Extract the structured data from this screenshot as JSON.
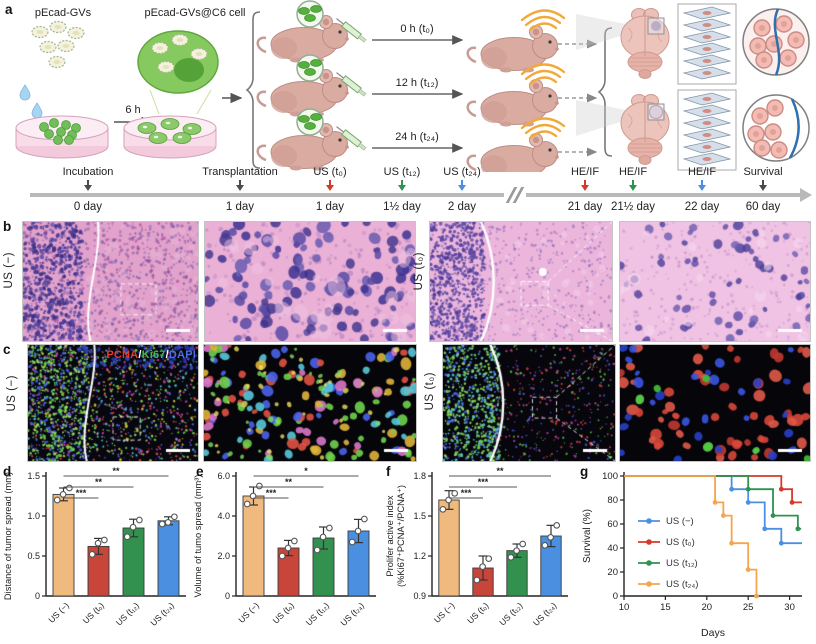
{
  "figure": {
    "panel_letters": [
      "a",
      "b",
      "c",
      "d",
      "e",
      "f",
      "g"
    ]
  },
  "schematic": {
    "gv_label": "pEcad-GVs",
    "cell_label": "pEcad-GVs@C6 cell",
    "incubation_time": "6 h",
    "injection_arrows": [
      "0 h (t₀)",
      "12 h (t₁₂)",
      "24 h (t₂₄)"
    ],
    "timeline": [
      {
        "label": "Incubation",
        "day": "0 day",
        "color": "#4a4a4a",
        "x": 88
      },
      {
        "label": "Transplantation",
        "day": "1 day",
        "color": "#4a4a4a",
        "x": 240
      },
      {
        "label": "US (t₀)",
        "day": "1 day",
        "color": "#d43a2a",
        "x": 330
      },
      {
        "label": "US (t₁₂)",
        "day": "1½ day",
        "color": "#2f9152",
        "x": 402
      },
      {
        "label": "US (t₂₄)",
        "day": "2 day",
        "color": "#4a90e2",
        "x": 462
      },
      {
        "label": "HE/IF",
        "day": "21 day",
        "color": "#d43a2a",
        "x": 585
      },
      {
        "label": "HE/IF",
        "day": "21½ day",
        "color": "#2f9152",
        "x": 633
      },
      {
        "label": "HE/IF",
        "day": "22 day",
        "color": "#4a90e2",
        "x": 702
      },
      {
        "label": "Survival",
        "day": "60 day",
        "color": "#4a4a4a",
        "x": 763
      }
    ],
    "timeline_break_x": 515
  },
  "histology": {
    "b_left_label": "US (−)",
    "b_right_label": "US (t₀)",
    "c_left_label": "US (−)",
    "c_right_label": "US (t₀)",
    "if_stain_labels": [
      {
        "text": "PCNA",
        "color": "#e8392b"
      },
      {
        "text": "/",
        "color": "#ffffff"
      },
      {
        "text": "Ki67",
        "color": "#3dbb44"
      },
      {
        "text": "/",
        "color": "#ffffff"
      },
      {
        "text": "DAPI",
        "color": "#4a6fe0"
      }
    ]
  },
  "chart_data": [
    {
      "id": "d",
      "type": "bar",
      "ylabel_lines": [
        "Distance of tumor spread (mm)"
      ],
      "categories": [
        "US (−)",
        "US (t₀)",
        "US (t₁₂)",
        "US (t₂₄)"
      ],
      "values": [
        1.27,
        0.62,
        0.85,
        0.94
      ],
      "errors": [
        0.08,
        0.1,
        0.11,
        0.05
      ],
      "points": [
        [
          1.2,
          1.27,
          1.35
        ],
        [
          0.52,
          0.66,
          0.7
        ],
        [
          0.74,
          0.86,
          0.95
        ],
        [
          0.9,
          0.92,
          0.99
        ]
      ],
      "ylim": [
        0,
        1.5
      ],
      "ytick_vals": [
        0,
        0.5,
        1.0,
        1.5
      ],
      "ytick_labels": [
        "0",
        "0.5",
        "1.0",
        "1.5"
      ],
      "sig": [
        [
          0,
          3,
          "**"
        ],
        [
          0,
          2,
          "**"
        ],
        [
          0,
          1,
          "***"
        ]
      ],
      "bar_colors": [
        "#f0b97e",
        "#c8453a",
        "#33914f",
        "#4a8fe0"
      ]
    },
    {
      "id": "e",
      "type": "bar",
      "ylabel_lines": [
        "Volume of tumo spread (mm³)"
      ],
      "categories": [
        "US (−)",
        "US (t₀)",
        "US (t₁₂)",
        "US (t₂₄)"
      ],
      "values": [
        5.0,
        2.4,
        2.9,
        3.25
      ],
      "errors": [
        0.45,
        0.38,
        0.55,
        0.58
      ],
      "points": [
        [
          4.6,
          5.0,
          5.5
        ],
        [
          2.0,
          2.4,
          2.75
        ],
        [
          2.3,
          2.95,
          3.4
        ],
        [
          2.7,
          3.25,
          3.85
        ]
      ],
      "ylim": [
        0,
        6
      ],
      "ytick_vals": [
        0,
        2,
        4,
        6
      ],
      "ytick_labels": [
        "0",
        "2.0",
        "4.0",
        "6.0"
      ],
      "sig": [
        [
          0,
          3,
          "*"
        ],
        [
          0,
          2,
          "**"
        ],
        [
          0,
          1,
          "***"
        ]
      ],
      "bar_colors": [
        "#f0b97e",
        "#c8453a",
        "#33914f",
        "#4a8fe0"
      ]
    },
    {
      "id": "f",
      "type": "bar",
      "ylabel_lines": [
        "Prolifer active index",
        "(%Ki67⁺PCNA⁺/PCNA⁺)"
      ],
      "categories": [
        "US (−)",
        "US (t₀)",
        "US (t₁₂)",
        "US (t₂₄)"
      ],
      "values": [
        1.62,
        1.11,
        1.24,
        1.35
      ],
      "errors": [
        0.07,
        0.09,
        0.05,
        0.08
      ],
      "points": [
        [
          1.55,
          1.62,
          1.67
        ],
        [
          1.02,
          1.12,
          1.18
        ],
        [
          1.19,
          1.24,
          1.29
        ],
        [
          1.28,
          1.34,
          1.43
        ]
      ],
      "ylim": [
        0.9,
        1.8
      ],
      "ytick_vals": [
        0.9,
        1.2,
        1.5,
        1.8
      ],
      "ytick_labels": [
        "0.9",
        "1.2",
        "1.5",
        "1.8"
      ],
      "sig": [
        [
          0,
          3,
          "**"
        ],
        [
          0,
          2,
          "***"
        ],
        [
          0,
          1,
          "***"
        ]
      ],
      "bar_colors": [
        "#f0b97e",
        "#c8453a",
        "#33914f",
        "#4a8fe0"
      ]
    },
    {
      "id": "g",
      "type": "line",
      "ylabel": "Survival (%)",
      "xlabel": "Days",
      "xlim": [
        10,
        31.5
      ],
      "ylim": [
        0,
        100
      ],
      "xticks": [
        10,
        15,
        20,
        25,
        30
      ],
      "yticks": [
        0,
        20,
        40,
        60,
        80,
        100
      ],
      "legend_position": "left-middle",
      "series": [
        {
          "name": "US (−)",
          "color": "#4a90e2",
          "steps": [
            [
              10,
              100
            ],
            [
              23,
              100
            ],
            [
              23,
              89
            ],
            [
              25,
              89
            ],
            [
              25,
              78
            ],
            [
              27,
              78
            ],
            [
              27,
              56
            ],
            [
              29,
              56
            ],
            [
              29,
              44
            ],
            [
              31.5,
              44
            ]
          ]
        },
        {
          "name": "US (t₀)",
          "color": "#d43a2a",
          "steps": [
            [
              10,
              100
            ],
            [
              29,
              100
            ],
            [
              29,
              89
            ],
            [
              30.3,
              89
            ],
            [
              30.3,
              78
            ],
            [
              31.5,
              78
            ]
          ]
        },
        {
          "name": "US (t₁₂)",
          "color": "#2f9152",
          "steps": [
            [
              10,
              100
            ],
            [
              25,
              100
            ],
            [
              25,
              89
            ],
            [
              28,
              89
            ],
            [
              28,
              67
            ],
            [
              31,
              67
            ],
            [
              31,
              56
            ],
            [
              31.4,
              56
            ]
          ]
        },
        {
          "name": "US (t₂₄)",
          "color": "#f5a54d",
          "steps": [
            [
              10,
              100
            ],
            [
              21,
              100
            ],
            [
              21,
              78
            ],
            [
              22,
              78
            ],
            [
              22,
              67
            ],
            [
              23,
              67
            ],
            [
              23,
              44
            ],
            [
              25,
              44
            ],
            [
              25,
              22
            ],
            [
              26,
              22
            ],
            [
              26,
              0
            ]
          ]
        }
      ]
    }
  ]
}
